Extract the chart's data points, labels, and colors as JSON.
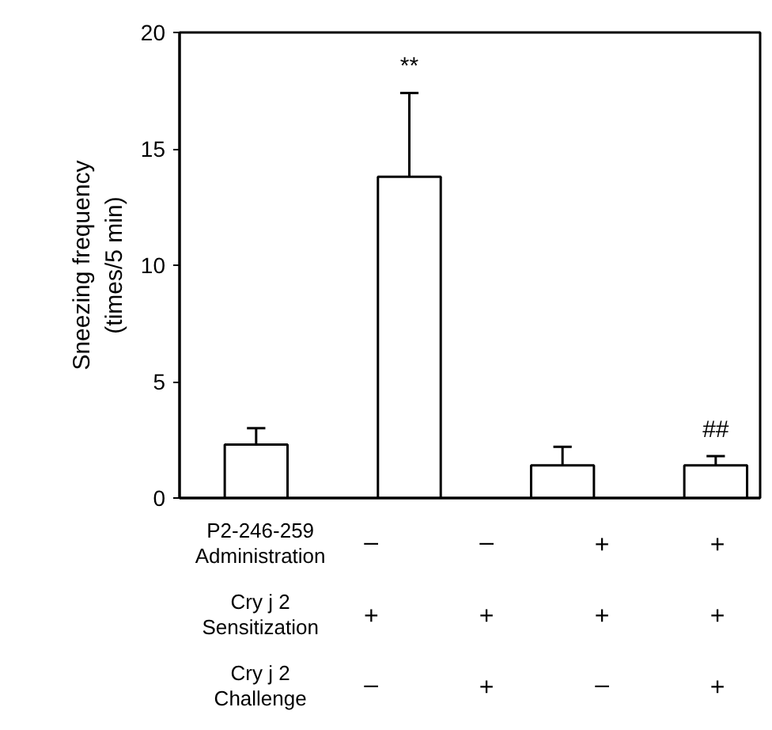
{
  "chart_data": {
    "type": "bar",
    "categories": [
      null,
      null,
      null,
      null
    ],
    "values": [
      2.3,
      13.8,
      1.4,
      1.4
    ],
    "errors": [
      [
        2.3,
        3.0
      ],
      [
        13.8,
        17.4
      ],
      [
        1.4,
        2.2
      ],
      [
        1.4,
        1.8
      ]
    ],
    "color": "#ffffff",
    "ylabel": "Sneezing frequency\n(times/5 min)",
    "ylim": [
      0,
      20
    ],
    "yticks": [
      0,
      5,
      10,
      15,
      20
    ],
    "grid": false,
    "tick_labels": "y",
    "annotations": [
      "**",
      "##",
      "P2-246-259\nAdministration",
      "–",
      "–",
      "+",
      "+",
      "Cry j 2\nSensitization",
      "+",
      "+",
      "+",
      "+",
      "Cry j 2\nChallenge",
      "–",
      "+",
      "–",
      "+"
    ]
  }
}
